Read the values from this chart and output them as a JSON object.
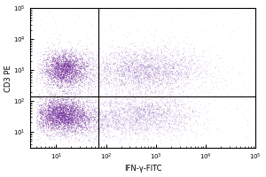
{
  "title": "",
  "xlabel": "IFN-γ-FITC",
  "ylabel": "CD3 PE",
  "xlim": [
    3,
    100000
  ],
  "ylim": [
    3,
    100000
  ],
  "quadrant_x_log": 1.85,
  "quadrant_y_log": 2.15,
  "dot_color": "#550088",
  "dot_alpha": 0.22,
  "dot_size": 0.8,
  "background_color": "#ffffff",
  "seed": 42,
  "clusters": {
    "upper_left": {
      "x_mean": 1.15,
      "x_std": 0.22,
      "y_mean": 3.05,
      "y_std": 0.28,
      "n": 2200
    },
    "upper_left_spread": {
      "x_mean": 1.35,
      "x_std": 0.38,
      "y_mean": 2.85,
      "y_std": 0.4,
      "n": 800
    },
    "upper_right": {
      "x_mean": 2.8,
      "x_std": 0.55,
      "y_mean": 3.0,
      "y_std": 0.38,
      "n": 2800
    },
    "lower_left": {
      "x_mean": 1.1,
      "x_std": 0.28,
      "y_mean": 1.55,
      "y_std": 0.28,
      "n": 3000
    },
    "lower_left_spread": {
      "x_mean": 1.45,
      "x_std": 0.42,
      "y_mean": 1.35,
      "y_std": 0.32,
      "n": 1200
    },
    "lower_right": {
      "x_mean": 2.75,
      "x_std": 0.52,
      "y_mean": 1.55,
      "y_std": 0.35,
      "n": 2200
    },
    "scattered": {
      "n": 600
    }
  }
}
